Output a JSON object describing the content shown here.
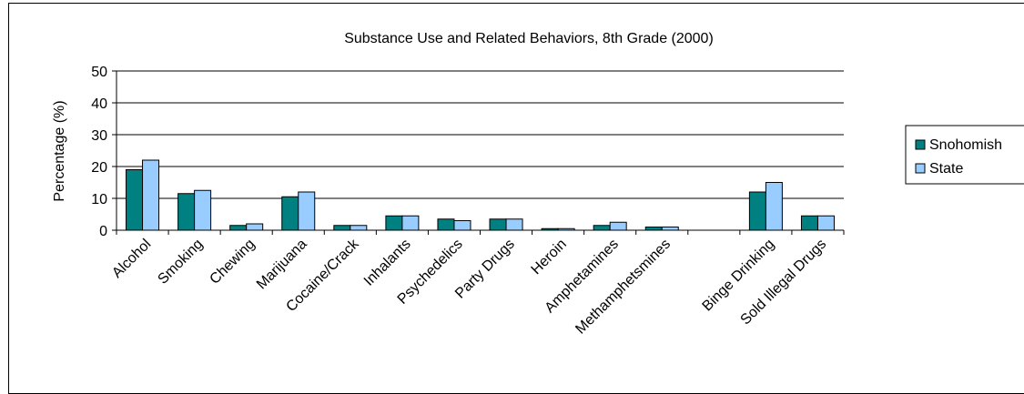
{
  "chart_data": {
    "type": "bar",
    "title": "Substance Use and Related Behaviors, 8th Grade (2000)",
    "xlabel": "",
    "ylabel": "Percentage (%)",
    "ylim": [
      0,
      50
    ],
    "yticks": [
      0,
      10,
      20,
      30,
      40,
      50
    ],
    "grid": true,
    "legend_position": "right",
    "categories": [
      "Alcohol",
      "Smoking",
      "Chewing",
      "Marijuana",
      "Cocaine/Crack",
      "Inhalants",
      "Psychedelics",
      "Party Drugs",
      "Heroin",
      "Amphetamines",
      "Methamphetsmines",
      "",
      "Binge Drinking",
      "Sold Illegal Drugs"
    ],
    "series": [
      {
        "name": "Snohomish",
        "color": "#008080",
        "values": [
          19,
          11.5,
          1.5,
          10.5,
          1.5,
          4.5,
          3.5,
          3.5,
          0.5,
          1.5,
          1,
          0,
          12,
          4.5
        ]
      },
      {
        "name": "State",
        "color": "#99CCFF",
        "values": [
          22,
          12.5,
          2,
          12,
          1.5,
          4.5,
          3,
          3.5,
          0.5,
          2.5,
          1,
          0,
          15,
          4.5
        ]
      }
    ]
  }
}
